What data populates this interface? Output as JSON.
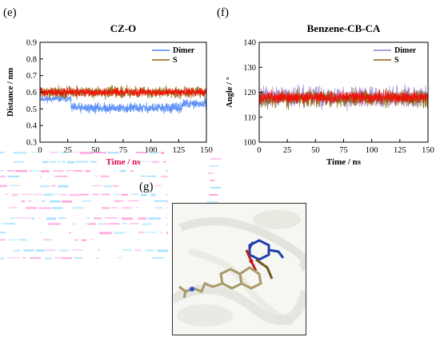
{
  "panels": {
    "e": "(e)",
    "f": "(f)",
    "g": "(g)"
  },
  "chart_data": [
    {
      "type": "line",
      "title": "CZ-O",
      "xlabel": "Time / ns",
      "ylabel": "Distance / nm",
      "xlim": [
        0,
        150
      ],
      "ylim": [
        0.3,
        0.9
      ],
      "xticks": [
        0,
        25,
        50,
        75,
        100,
        125,
        150
      ],
      "yticks": [
        0.3,
        0.4,
        0.5,
        0.6,
        0.7,
        0.8,
        0.9
      ],
      "legend_position": "top-right",
      "series": [
        {
          "name": "Dimer",
          "color": "#4f86f7",
          "segments": [
            {
              "x": [
                0,
                28
              ],
              "mean": 0.56,
              "spread": 0.03
            },
            {
              "x": [
                28,
                128
              ],
              "mean": 0.505,
              "spread": 0.045
            },
            {
              "x": [
                128,
                150
              ],
              "mean": 0.53,
              "spread": 0.04
            }
          ]
        },
        {
          "name": "S",
          "color": "#8b6508",
          "segments": [
            {
              "x": [
                0,
                150
              ],
              "mean": 0.6,
              "spread": 0.05
            }
          ]
        },
        {
          "name": "",
          "color": "#ff0000",
          "segments": [
            {
              "x": [
                0,
                150
              ],
              "mean": 0.6,
              "spread": 0.035
            }
          ]
        }
      ]
    },
    {
      "type": "line",
      "title": "Benzene-CB-CA",
      "xlabel": "Time / ns",
      "ylabel": "Angle / °",
      "xlim": [
        0,
        150
      ],
      "ylim": [
        100,
        140
      ],
      "xticks": [
        0,
        25,
        50,
        75,
        100,
        125,
        150
      ],
      "yticks": [
        100,
        110,
        120,
        130,
        140
      ],
      "legend_position": "top-right",
      "series": [
        {
          "name": "Dimer",
          "color": "#9a7fd1",
          "segments": [
            {
              "x": [
                0,
                150
              ],
              "mean": 118,
              "spread": 6
            }
          ]
        },
        {
          "name": "S",
          "color": "#8b6508",
          "segments": [
            {
              "x": [
                0,
                150
              ],
              "mean": 117.5,
              "spread": 5
            }
          ]
        },
        {
          "name": "",
          "color": "#ff0000",
          "segments": [
            {
              "x": [
                0,
                150
              ],
              "mean": 118,
              "spread": 3.5
            }
          ]
        }
      ]
    }
  ]
}
